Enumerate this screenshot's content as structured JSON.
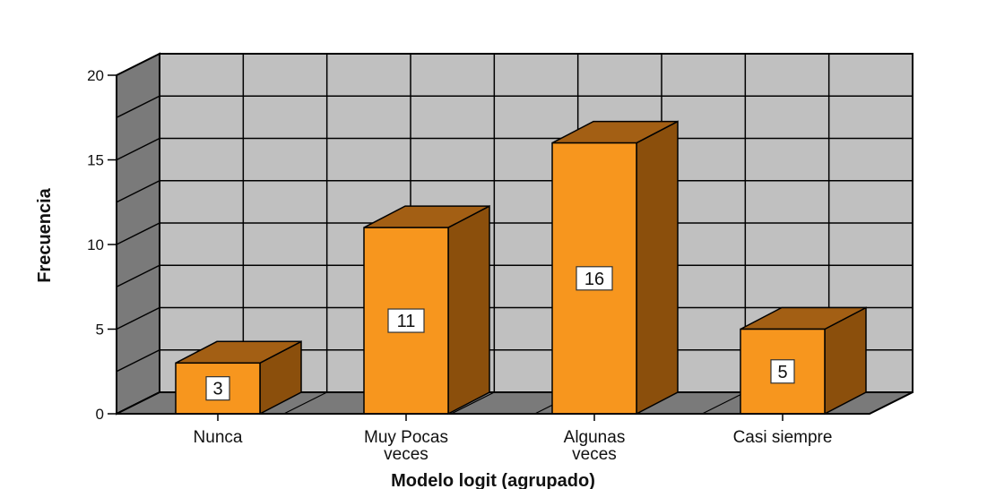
{
  "chart_data": {
    "type": "bar",
    "categories": [
      "Nunca",
      "Muy Pocas\nveces",
      "Algunas\nveces",
      "Casi siempre"
    ],
    "values": [
      3,
      11,
      16,
      5
    ],
    "data_labels": [
      "3",
      "11",
      "16",
      "5"
    ],
    "xlabel": "Modelo logit (agrupado)",
    "ylabel": "Frecuencia",
    "ylim": [
      0,
      20
    ],
    "yticks": [
      "0",
      "5",
      "10",
      "15",
      "20"
    ],
    "grid": true,
    "style": "3d",
    "colors": {
      "bar_front": "#f7961e",
      "bar_top": "#a35f14",
      "bar_side": "#8b4f0c",
      "back_wall": "#c0c0c0",
      "side_wall": "#7a7a7a",
      "floor": "#7a7a7a",
      "grid": "#000000"
    }
  }
}
